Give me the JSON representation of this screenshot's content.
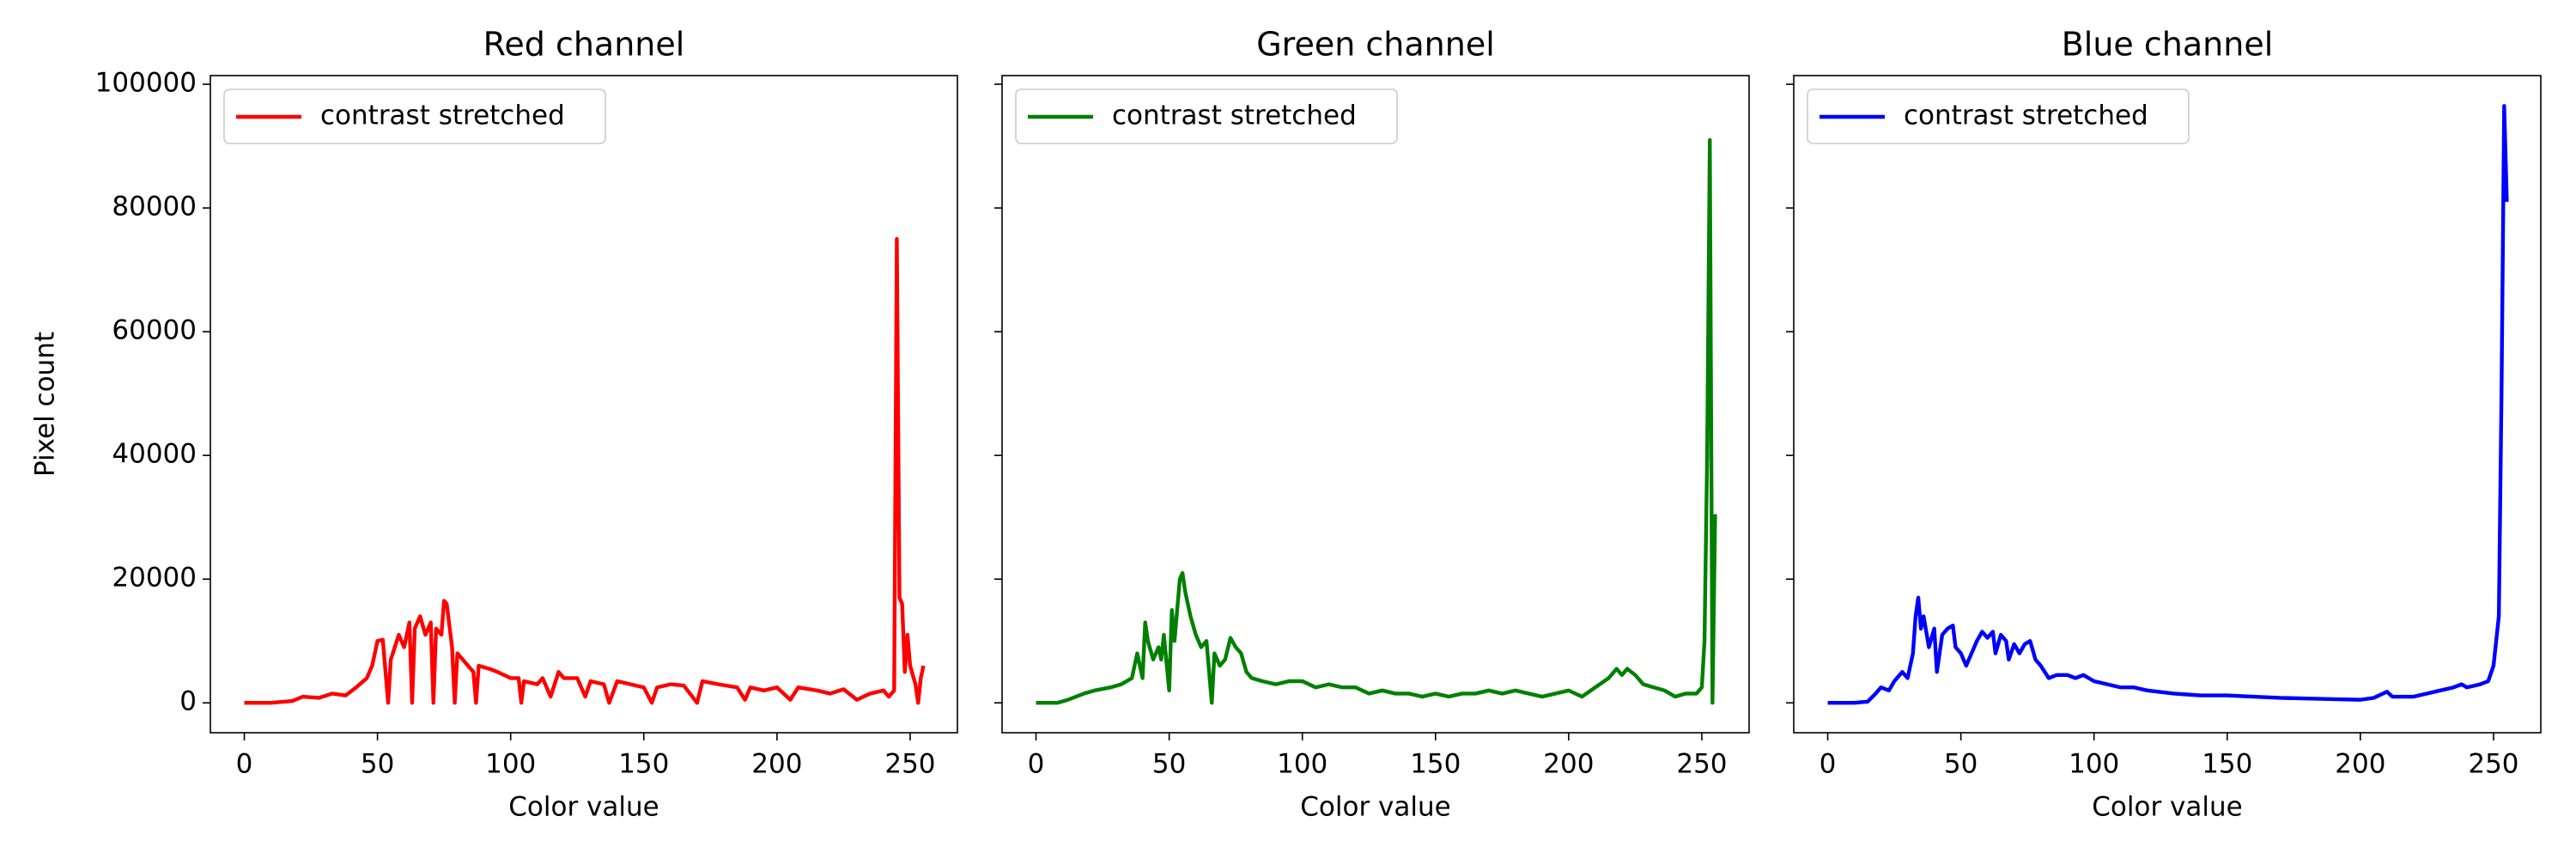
{
  "chart_data": [
    {
      "type": "line",
      "title": "Red channel",
      "xlabel": "Color value",
      "ylabel": "Pixel count",
      "legend": "upper left",
      "xlim": [
        -12.75,
        267.75
      ],
      "ylim": [
        -4830,
        101400
      ],
      "xticks": [
        0,
        50,
        100,
        150,
        200,
        250
      ],
      "yticks": [
        0,
        20000,
        40000,
        60000,
        80000,
        100000
      ],
      "x": [
        0,
        10,
        18,
        22,
        28,
        33,
        38,
        42,
        46,
        48,
        50,
        52,
        54,
        55,
        58,
        60,
        62,
        63,
        64,
        66,
        68,
        70,
        71,
        72,
        74,
        75,
        76,
        78,
        79,
        80,
        82,
        84,
        86,
        87,
        88,
        92,
        95,
        100,
        103,
        104,
        105,
        110,
        112,
        115,
        118,
        120,
        125,
        128,
        130,
        135,
        137,
        140,
        145,
        150,
        153,
        155,
        160,
        165,
        170,
        172,
        178,
        185,
        188,
        190,
        195,
        200,
        205,
        208,
        215,
        220,
        225,
        230,
        235,
        240,
        242,
        244,
        245,
        246,
        247,
        248,
        249,
        250,
        252,
        253,
        254,
        255
      ],
      "series": [
        {
          "name": "contrast stretched",
          "color": "#ff0000",
          "values": [
            0,
            0,
            300,
            1000,
            800,
            1500,
            1200,
            2500,
            4000,
            6000,
            10000,
            10200,
            0,
            7000,
            11000,
            9000,
            13000,
            0,
            12000,
            14000,
            11000,
            13000,
            0,
            12000,
            11000,
            16500,
            16000,
            9000,
            0,
            8000,
            7000,
            6000,
            5000,
            0,
            6000,
            5500,
            5000,
            4000,
            4000,
            0,
            3500,
            3000,
            4000,
            1000,
            5000,
            4000,
            4000,
            1000,
            3500,
            3000,
            0,
            3500,
            3000,
            2500,
            0,
            2500,
            3000,
            2800,
            0,
            3500,
            3000,
            2500,
            500,
            2500,
            2000,
            2500,
            500,
            2500,
            2000,
            1500,
            2200,
            500,
            1500,
            2000,
            1000,
            2000,
            75000,
            17000,
            16000,
            5000,
            11000,
            6000,
            3000,
            0,
            4000,
            6000
          ]
        }
      ]
    },
    {
      "type": "line",
      "title": "Green channel",
      "xlabel": "Color value",
      "sharey": true,
      "legend": "upper left",
      "xlim": [
        -12.75,
        267.75
      ],
      "ylim": [
        -4830,
        101400
      ],
      "xticks": [
        0,
        50,
        100,
        150,
        200,
        250
      ],
      "yticks": [
        0,
        20000,
        40000,
        60000,
        80000,
        100000
      ],
      "x": [
        0,
        8,
        12,
        18,
        22,
        28,
        32,
        36,
        38,
        40,
        41,
        42,
        44,
        46,
        47,
        48,
        50,
        51,
        52,
        54,
        55,
        56,
        58,
        60,
        62,
        64,
        66,
        67,
        69,
        71,
        73,
        75,
        77,
        79,
        81,
        85,
        90,
        95,
        100,
        105,
        110,
        115,
        120,
        125,
        130,
        135,
        140,
        145,
        150,
        155,
        160,
        165,
        170,
        175,
        180,
        185,
        190,
        195,
        200,
        205,
        210,
        215,
        218,
        220,
        222,
        225,
        228,
        232,
        236,
        240,
        244,
        248,
        250,
        251,
        252,
        253,
        254,
        255
      ],
      "series": [
        {
          "name": "contrast stretched",
          "color": "#008000",
          "values": [
            0,
            0,
            500,
            1500,
            2000,
            2500,
            3000,
            4000,
            8000,
            4000,
            13000,
            10000,
            7000,
            9000,
            7000,
            11000,
            2000,
            15000,
            10000,
            20000,
            21000,
            18000,
            14000,
            11000,
            9000,
            10000,
            0,
            8000,
            6000,
            7000,
            10500,
            9000,
            8000,
            5000,
            4000,
            3500,
            3000,
            3500,
            3500,
            2500,
            3000,
            2500,
            2500,
            1500,
            2000,
            1500,
            1500,
            1000,
            1500,
            1000,
            1500,
            1500,
            2000,
            1500,
            2000,
            1500,
            1000,
            1500,
            2000,
            1000,
            2500,
            4000,
            5500,
            4500,
            5500,
            4500,
            3000,
            2500,
            2000,
            1000,
            1500,
            1500,
            2500,
            10000,
            40000,
            91000,
            0,
            30500
          ]
        }
      ]
    },
    {
      "type": "line",
      "title": "Blue channel",
      "xlabel": "Color value",
      "sharey": true,
      "legend": "upper left",
      "xlim": [
        -12.75,
        267.75
      ],
      "ylim": [
        -4830,
        101400
      ],
      "xticks": [
        0,
        50,
        100,
        150,
        200,
        250
      ],
      "yticks": [
        0,
        20000,
        40000,
        60000,
        80000,
        100000
      ],
      "x": [
        0,
        10,
        15,
        18,
        20,
        23,
        25,
        28,
        30,
        32,
        33,
        34,
        35,
        36,
        38,
        40,
        41,
        43,
        45,
        47,
        48,
        50,
        52,
        54,
        56,
        58,
        60,
        62,
        63,
        65,
        67,
        68,
        70,
        72,
        74,
        76,
        78,
        80,
        83,
        86,
        90,
        93,
        96,
        100,
        105,
        110,
        115,
        120,
        130,
        140,
        150,
        160,
        170,
        180,
        190,
        200,
        205,
        210,
        212,
        220,
        230,
        235,
        238,
        240,
        245,
        248,
        250,
        252,
        253,
        254,
        255
      ],
      "series": [
        {
          "name": "contrast stretched",
          "color": "#0000ff",
          "values": [
            0,
            0,
            200,
            1500,
            2500,
            2000,
            3500,
            5000,
            4000,
            8000,
            14000,
            17000,
            12000,
            14000,
            9000,
            12000,
            5000,
            11000,
            12000,
            12500,
            9000,
            8000,
            6000,
            8000,
            10000,
            11500,
            10500,
            11500,
            8000,
            11000,
            10000,
            7000,
            9500,
            8000,
            9500,
            10000,
            7000,
            6000,
            4000,
            4500,
            4500,
            4000,
            4500,
            3500,
            3000,
            2500,
            2500,
            2000,
            1500,
            1200,
            1200,
            1000,
            800,
            700,
            600,
            500,
            800,
            1800,
            1000,
            1000,
            2000,
            2500,
            3000,
            2500,
            3000,
            3500,
            6000,
            14000,
            50000,
            96500,
            81000
          ]
        }
      ]
    }
  ]
}
